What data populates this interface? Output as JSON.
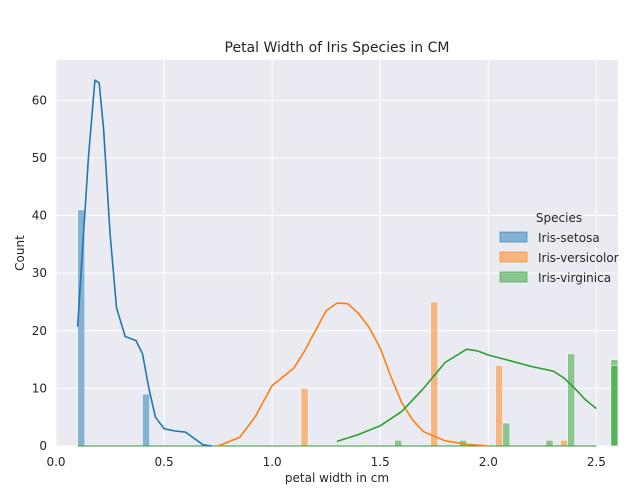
{
  "chart_data": {
    "type": "histogram",
    "title": "Petal Width of Iris Species in CM",
    "xlabel": "petal width in cm",
    "ylabel": "Count",
    "xlim": [
      0.0,
      2.6
    ],
    "ylim": [
      0,
      67
    ],
    "xticks": [
      "0.0",
      "0.5",
      "1.0",
      "1.5",
      "2.0",
      "2.5"
    ],
    "xtick_values": [
      0.0,
      0.5,
      1.0,
      1.5,
      2.0,
      2.5
    ],
    "yticks": [
      "0",
      "10",
      "20",
      "30",
      "40",
      "50",
      "60"
    ],
    "ytick_values": [
      0,
      10,
      20,
      30,
      40,
      50,
      60
    ],
    "grid": true,
    "legend_title": "Species",
    "legend_position": "center-right",
    "bins": [
      0.1,
      0.2,
      0.3,
      0.4,
      0.5,
      0.6,
      0.7,
      0.8,
      0.9,
      1.0,
      1.1,
      1.2,
      1.3,
      1.4,
      1.5,
      1.6,
      1.7,
      1.8,
      1.9,
      2.0,
      2.1,
      2.2,
      2.3,
      2.4,
      2.5
    ],
    "series": [
      {
        "name": "Iris-setosa",
        "color": "#1f77b4",
        "bars": [
          {
            "bin": 0,
            "count": 41
          },
          {
            "bin": 3,
            "count": 9
          }
        ],
        "kde": [
          [
            0.1,
            20.7
          ],
          [
            0.15,
            50
          ],
          [
            0.18,
            63.5
          ],
          [
            0.2,
            63
          ],
          [
            0.22,
            55
          ],
          [
            0.25,
            37
          ],
          [
            0.28,
            24
          ],
          [
            0.32,
            19
          ],
          [
            0.37,
            18.3
          ],
          [
            0.4,
            16
          ],
          [
            0.43,
            10
          ],
          [
            0.46,
            5
          ],
          [
            0.5,
            3
          ],
          [
            0.55,
            2.6
          ],
          [
            0.6,
            2.4
          ],
          [
            0.64,
            1.3
          ],
          [
            0.68,
            0.2
          ],
          [
            0.72,
            0
          ]
        ]
      },
      {
        "name": "Iris-versicolor",
        "color": "#ff7f0e",
        "bars": [
          {
            "bin": 10,
            "count": 10
          },
          {
            "bin": 16,
            "count": 25
          },
          {
            "bin": 19,
            "count": 14
          },
          {
            "bin": 22,
            "count": 1
          }
        ],
        "kde": [
          [
            0.75,
            0
          ],
          [
            0.85,
            1.5
          ],
          [
            0.92,
            5
          ],
          [
            1.0,
            10.5
          ],
          [
            1.05,
            12
          ],
          [
            1.1,
            13.5
          ],
          [
            1.15,
            16.5
          ],
          [
            1.2,
            20
          ],
          [
            1.25,
            23.5
          ],
          [
            1.3,
            24.8
          ],
          [
            1.35,
            24.7
          ],
          [
            1.4,
            23
          ],
          [
            1.45,
            20.5
          ],
          [
            1.5,
            17
          ],
          [
            1.55,
            12
          ],
          [
            1.6,
            7.5
          ],
          [
            1.65,
            4.5
          ],
          [
            1.7,
            2.5
          ],
          [
            1.8,
            0.9
          ],
          [
            1.9,
            0.3
          ],
          [
            2.0,
            0
          ]
        ]
      },
      {
        "name": "Iris-virginica",
        "color": "#2ca02c",
        "bars": [
          {
            "bin": 14,
            "count": 1
          },
          {
            "bin": 17,
            "count": 1
          },
          {
            "bin": 19,
            "count": 4
          },
          {
            "bin": 21,
            "count": 1
          },
          {
            "bin": 22,
            "count": 16
          },
          {
            "bin": 24,
            "count": 15
          },
          {
            "bin": 24,
            "count": 14
          }
        ],
        "kde": [
          [
            1.3,
            0.8
          ],
          [
            1.4,
            2
          ],
          [
            1.5,
            3.5
          ],
          [
            1.6,
            6
          ],
          [
            1.7,
            10
          ],
          [
            1.8,
            14.5
          ],
          [
            1.9,
            16.8
          ],
          [
            1.95,
            16.5
          ],
          [
            2.0,
            15.8
          ],
          [
            2.1,
            14.8
          ],
          [
            2.2,
            13.8
          ],
          [
            2.3,
            13
          ],
          [
            2.35,
            11.8
          ],
          [
            2.4,
            10
          ],
          [
            2.45,
            8
          ],
          [
            2.5,
            6.5
          ]
        ]
      }
    ]
  }
}
